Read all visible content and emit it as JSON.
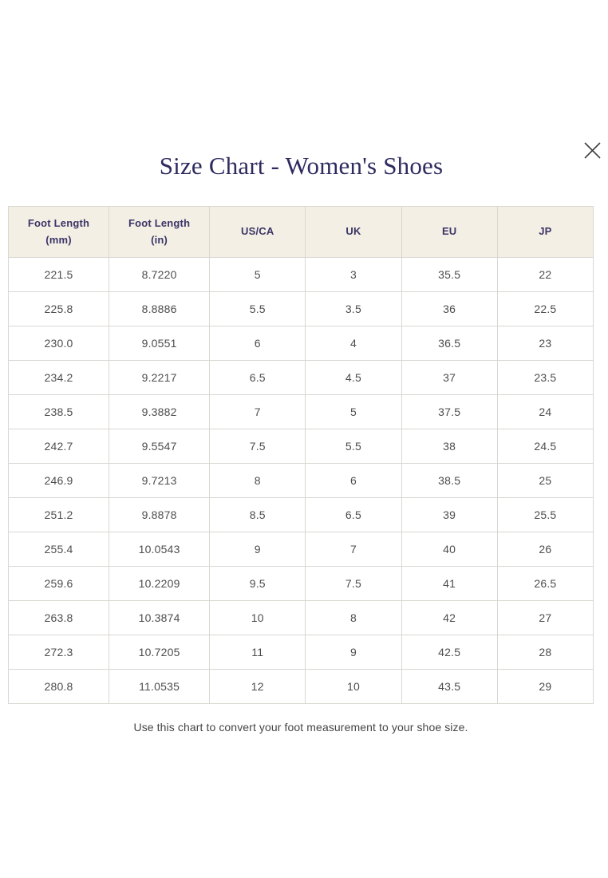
{
  "modal": {
    "title": "Size Chart - Women's Shoes",
    "footer_note": "Use this chart to convert your foot measurement to your shoe size.",
    "close_icon": "x-close"
  },
  "colors": {
    "title_text": "#2e2b5f",
    "header_background": "#f3efe5",
    "header_text": "#3b3566",
    "cell_text": "#4d4d4d",
    "border": "#d9d7d2",
    "page_background": "#ffffff"
  },
  "table": {
    "headers": [
      "Foot Length\n(mm)",
      "Foot Length\n(in)",
      "US/CA",
      "UK",
      "EU",
      "JP"
    ],
    "rows": [
      [
        "221.5",
        "8.7220",
        "5",
        "3",
        "35.5",
        "22"
      ],
      [
        "225.8",
        "8.8886",
        "5.5",
        "3.5",
        "36",
        "22.5"
      ],
      [
        "230.0",
        "9.0551",
        "6",
        "4",
        "36.5",
        "23"
      ],
      [
        "234.2",
        "9.2217",
        "6.5",
        "4.5",
        "37",
        "23.5"
      ],
      [
        "238.5",
        "9.3882",
        "7",
        "5",
        "37.5",
        "24"
      ],
      [
        "242.7",
        "9.5547",
        "7.5",
        "5.5",
        "38",
        "24.5"
      ],
      [
        "246.9",
        "9.7213",
        "8",
        "6",
        "38.5",
        "25"
      ],
      [
        "251.2",
        "9.8878",
        "8.5",
        "6.5",
        "39",
        "25.5"
      ],
      [
        "255.4",
        "10.0543",
        "9",
        "7",
        "40",
        "26"
      ],
      [
        "259.6",
        "10.2209",
        "9.5",
        "7.5",
        "41",
        "26.5"
      ],
      [
        "263.8",
        "10.3874",
        "10",
        "8",
        "42",
        "27"
      ],
      [
        "272.3",
        "10.7205",
        "11",
        "9",
        "42.5",
        "28"
      ],
      [
        "280.8",
        "11.0535",
        "12",
        "10",
        "43.5",
        "29"
      ]
    ]
  }
}
